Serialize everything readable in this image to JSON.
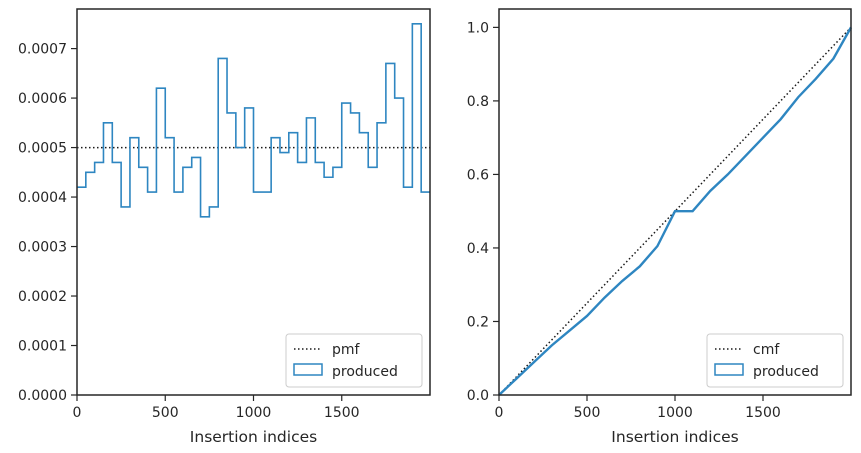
{
  "colors": {
    "produced": "#2e86c1",
    "reference": "#1a1a1a",
    "axes": "#262626"
  },
  "chart_data": [
    {
      "type": "line",
      "subtype": "step-histogram",
      "xlabel": "Insertion indices",
      "ylabel": "",
      "xlim": [
        0,
        2000
      ],
      "ylim": [
        0,
        0.00078
      ],
      "x_ticks": [
        0,
        500,
        1000,
        1500
      ],
      "x_tick_labels": [
        "0",
        "500",
        "1000",
        "1500"
      ],
      "y_ticks": [
        0,
        0.0001,
        0.0002,
        0.0003,
        0.0004,
        0.0005,
        0.0006,
        0.0007
      ],
      "y_tick_labels": [
        "0.0000",
        "0.0001",
        "0.0002",
        "0.0003",
        "0.0004",
        "0.0005",
        "0.0006",
        "0.0007"
      ],
      "grid": false,
      "legend_position": "lower-right",
      "bin_width": 50,
      "series": [
        {
          "name": "pmf",
          "style": "dotted",
          "x": [
            0,
            2000
          ],
          "values": [
            0.0005,
            0.0005
          ]
        },
        {
          "name": "produced",
          "style": "step",
          "values": [
            0.00042,
            0.00045,
            0.00047,
            0.00055,
            0.00047,
            0.00038,
            0.00052,
            0.00046,
            0.00041,
            0.00062,
            0.00052,
            0.00041,
            0.00046,
            0.00048,
            0.00036,
            0.00038,
            0.00068,
            0.00057,
            0.0005,
            0.00058,
            0.00041,
            0.00041,
            0.00052,
            0.00049,
            0.00053,
            0.00047,
            0.00056,
            0.00047,
            0.00044,
            0.00046,
            0.00059,
            0.00057,
            0.00053,
            0.00046,
            0.00055,
            0.00067,
            0.0006,
            0.00042,
            0.00075,
            0.00041
          ]
        }
      ]
    },
    {
      "type": "line",
      "xlabel": "Insertion indices",
      "ylabel": "",
      "xlim": [
        0,
        2000
      ],
      "ylim": [
        0,
        1.05
      ],
      "x_ticks": [
        0,
        500,
        1000,
        1500
      ],
      "x_tick_labels": [
        "0",
        "500",
        "1000",
        "1500"
      ],
      "y_ticks": [
        0,
        0.2,
        0.4,
        0.6,
        0.8,
        1.0
      ],
      "y_tick_labels": [
        "0.0",
        "0.2",
        "0.4",
        "0.6",
        "0.8",
        "1.0"
      ],
      "grid": false,
      "legend_position": "lower-right",
      "series": [
        {
          "name": "cmf",
          "style": "dotted",
          "x": [
            0,
            2000
          ],
          "values": [
            0,
            1.0
          ]
        },
        {
          "name": "produced",
          "style": "line",
          "x": [
            0,
            100,
            200,
            300,
            400,
            500,
            600,
            700,
            800,
            900,
            1000,
            1100,
            1200,
            1300,
            1400,
            1500,
            1600,
            1700,
            1800,
            1900,
            2000
          ],
          "values": [
            0,
            0.045,
            0.09,
            0.135,
            0.175,
            0.215,
            0.265,
            0.31,
            0.35,
            0.405,
            0.5,
            0.5,
            0.555,
            0.6,
            0.65,
            0.7,
            0.75,
            0.81,
            0.86,
            0.915,
            1.0
          ]
        }
      ]
    }
  ]
}
